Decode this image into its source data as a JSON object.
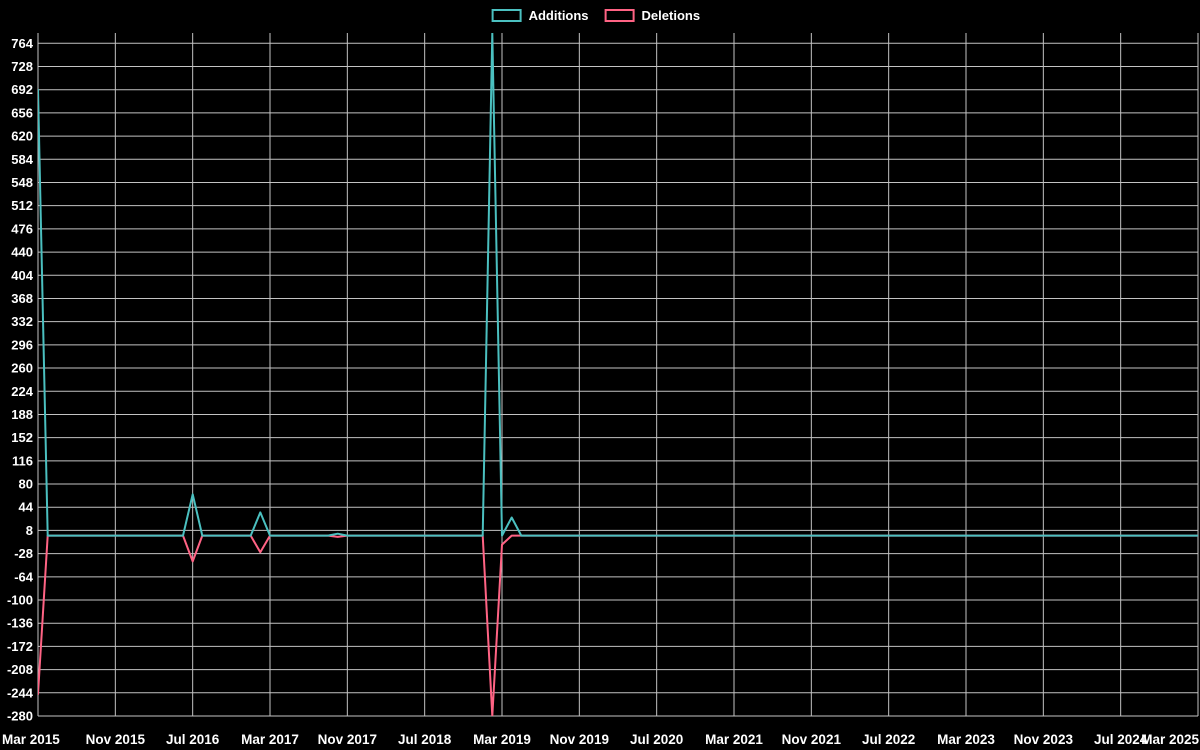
{
  "chart_data": {
    "type": "line",
    "title": "",
    "x_start": "2015-03",
    "x_end": "2025-03",
    "x_interval": "month",
    "x_tick_every_months": 8,
    "x_tick_labels": [
      "Mar 2015",
      "Nov 2015",
      "Jul 2016",
      "Mar 2017",
      "Nov 2017",
      "Jul 2018",
      "Mar 2019",
      "Nov 2019",
      "Jul 2020",
      "Mar 2021",
      "Nov 2021",
      "Jul 2022",
      "Mar 2023",
      "Nov 2023",
      "Jul 2024",
      "Mar 2025"
    ],
    "y_min": -280,
    "y_max": 780,
    "y_tick_step": 36,
    "y_label_max": 764,
    "y_tick_labels": [
      764,
      728,
      692,
      656,
      620,
      584,
      548,
      512,
      476,
      440,
      404,
      368,
      332,
      296,
      260,
      224,
      188,
      152,
      116,
      80,
      44,
      8,
      -28,
      -64,
      -100,
      -136,
      -172,
      -208,
      -244,
      -280
    ],
    "baseline_value": 0,
    "grid": true,
    "legend_position": "top",
    "background": "#000000",
    "grid_color": "#e6e6e6",
    "text_color": "#ffffff",
    "series": [
      {
        "name": "Additions",
        "color": "#4bc0c0",
        "baseline": 0,
        "points": [
          {
            "month": "2015-03",
            "value": 692
          },
          {
            "month": "2016-07",
            "value": 64
          },
          {
            "month": "2017-02",
            "value": 36
          },
          {
            "month": "2017-10",
            "value": 3
          },
          {
            "month": "2019-02",
            "value": 780
          },
          {
            "month": "2019-04",
            "value": 28
          }
        ]
      },
      {
        "name": "Deletions",
        "color": "#ff6384",
        "baseline": 0,
        "points": [
          {
            "month": "2015-03",
            "value": -246
          },
          {
            "month": "2016-07",
            "value": -40
          },
          {
            "month": "2017-02",
            "value": -26
          },
          {
            "month": "2017-10",
            "value": -2
          },
          {
            "month": "2019-02",
            "value": -280
          },
          {
            "month": "2019-03",
            "value": -14
          }
        ]
      }
    ]
  }
}
